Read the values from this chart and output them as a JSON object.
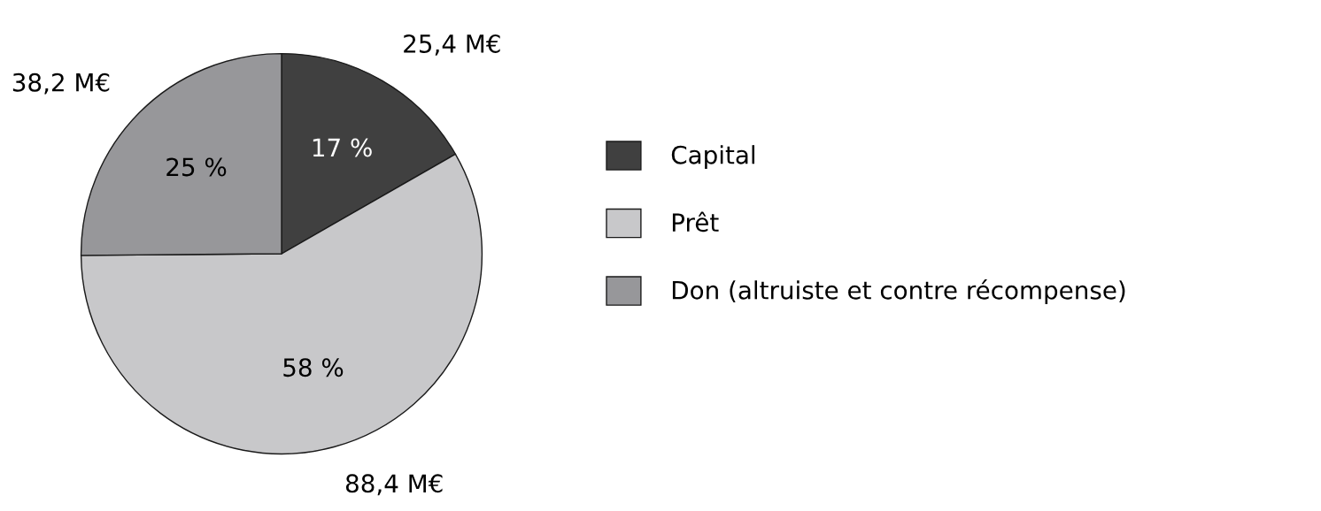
{
  "chart_data": {
    "type": "pie",
    "categories": [
      "Capital",
      "Prêt",
      "Don (altruiste et contre récompense)"
    ],
    "values": [
      25.4,
      88.4,
      38.2
    ],
    "colors": [
      "#404040",
      "#c8c8ca",
      "#97979a"
    ],
    "value_labels": [
      "25,4 M€",
      "88,4 M€",
      "38,2 M€"
    ],
    "annotations": [
      "17 %",
      "58 %",
      "25 %"
    ],
    "legend": "right"
  }
}
